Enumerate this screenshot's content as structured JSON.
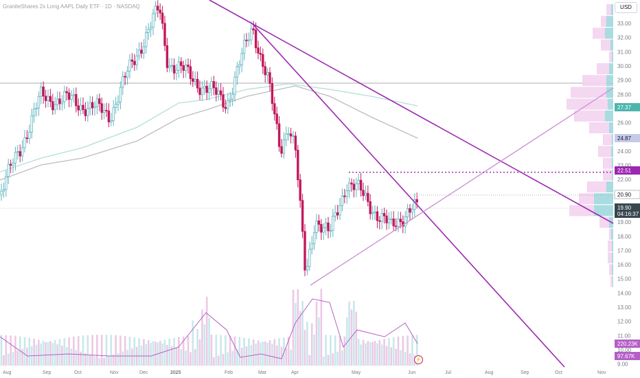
{
  "header": {
    "title": "GraniteShares 2x Long AAPL Daily ETF · 1D · NASDAQ",
    "currency": "USD"
  },
  "colors": {
    "up": "#5fb3bf",
    "down": "#c2185b",
    "trendline": "#9c27b0",
    "trendline_light": "#ce93d8",
    "ma_fast": "#b2dfdb",
    "ma_slow": "#bdbdbd",
    "profile_up": "#9ed8dd",
    "profile_down": "#f3d3ee",
    "volume_ma": "#b45fc6"
  },
  "icons": {
    "flash": "lightning-icon"
  },
  "chart_data": {
    "type": "candlestick",
    "title": "GraniteShares 2x Long AAPL Daily ETF · 1D · NASDAQ",
    "ylabel": "USD",
    "ylim": [
      9.0,
      34.0
    ],
    "y_ticks": [
      "33.00",
      "32.00",
      "31.00",
      "30.00",
      "29.00",
      "28.00",
      "27.00",
      "26.00",
      "25.00",
      "24.00",
      "23.00",
      "22.00",
      "21.00",
      "20.00",
      "19.00",
      "18.00",
      "17.00",
      "16.00",
      "15.00",
      "14.00",
      "13.00",
      "12.00",
      "11.00",
      "10.00",
      "9.00"
    ],
    "x_ticks": [
      "Aug",
      "Sep",
      "Oct",
      "Nov",
      "Dec",
      "2025",
      "Feb",
      "Mar",
      "Apr",
      "May",
      "Jun",
      "Jul",
      "Aug",
      "Sep",
      "Oct",
      "Nov"
    ],
    "ohlc_anchors": [
      {
        "date": "Aug",
        "close": 20.9
      },
      {
        "date": "Sep",
        "close": 27.8
      },
      {
        "date": "Oct",
        "close": 27.5
      },
      {
        "date": "Nov",
        "close": 26.6
      },
      {
        "date": "Dec",
        "close": 31.5
      },
      {
        "date": "Dec 26",
        "close": 34.0
      },
      {
        "date": "2025",
        "close": 30.4
      },
      {
        "date": "Feb",
        "close": 27.4
      },
      {
        "date": "Feb 24",
        "close": 32.8
      },
      {
        "date": "Mar",
        "close": 29.0
      },
      {
        "date": "Mar 11",
        "close": 24.0
      },
      {
        "date": "Mar 25",
        "close": 26.0
      },
      {
        "date": "Apr",
        "close": 24.3
      },
      {
        "date": "Apr 8",
        "close": 15.0
      },
      {
        "date": "Apr 9",
        "close": 19.4
      },
      {
        "date": "Apr 21",
        "close": 18.0
      },
      {
        "date": "May",
        "close": 21.9
      },
      {
        "date": "May 12",
        "close": 21.3
      },
      {
        "date": "May 22",
        "close": 18.5
      },
      {
        "date": "Jun",
        "close": 20.0
      },
      {
        "date": "Jun 6",
        "close": 19.9
      }
    ],
    "price_labels": [
      {
        "value": "27.37",
        "kind": "ma"
      },
      {
        "value": "24.87",
        "kind": "ma"
      },
      {
        "value": "22.51",
        "kind": "line"
      },
      {
        "value": "20.90",
        "kind": "line"
      },
      {
        "value": "19.90",
        "kind": "last"
      },
      {
        "value": "04:16:37",
        "kind": "countdown"
      }
    ],
    "volume_labels": [
      "220.23K",
      "97.67K"
    ],
    "horizontal_levels": [
      22.51,
      20.9
    ],
    "grid": false,
    "legend": "none"
  }
}
